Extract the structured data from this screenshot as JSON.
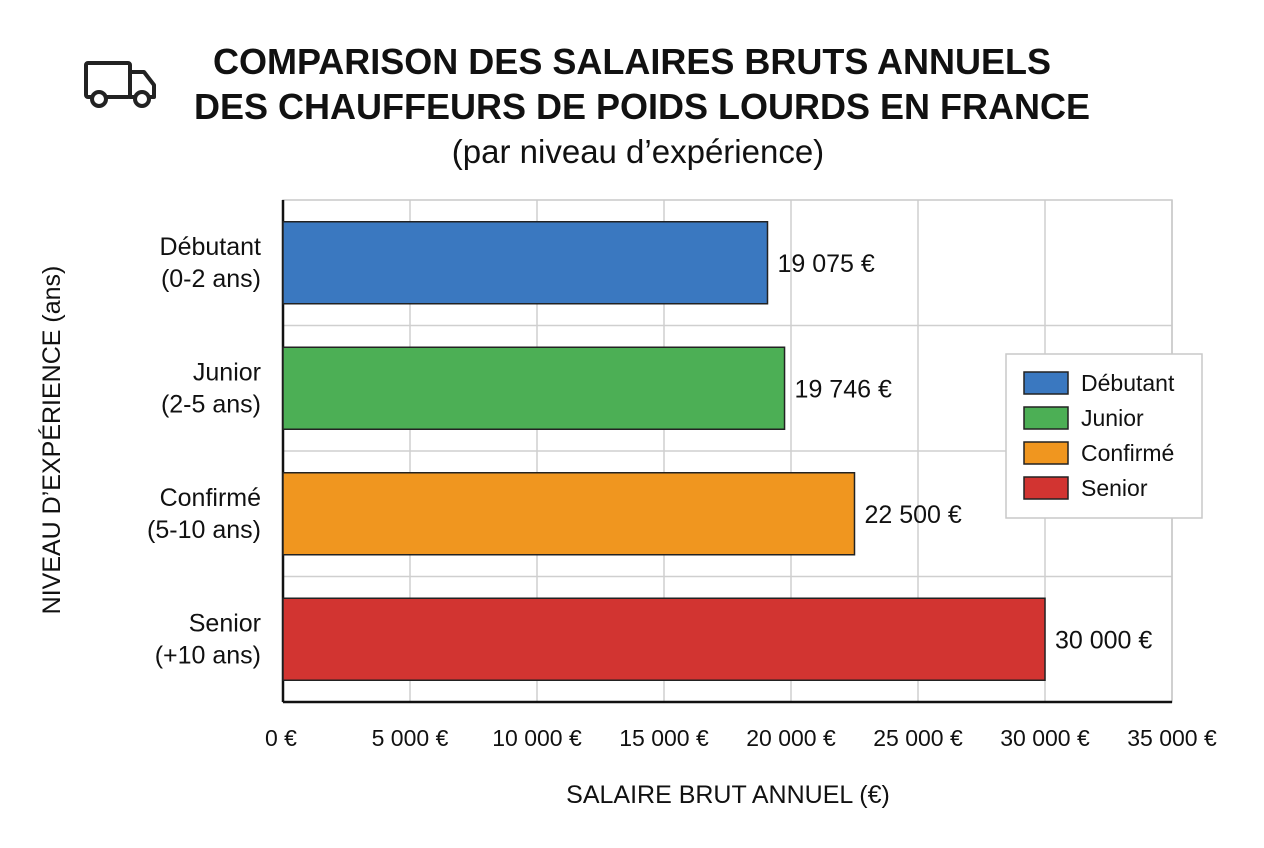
{
  "icon": "truck-icon",
  "chart_data": {
    "type": "bar",
    "orientation": "horizontal",
    "title": [
      "COMPARISON DES SALAIRES BRUTS ANNUELS",
      "DES CHAUFFEURS DE POIDS LOURDS EN FRANCE"
    ],
    "subtitle": "(par niveau d’expérience)",
    "xlabel": "SALAIRE BRUT ANNUEL (€)",
    "ylabel": "NIVEAU D’EXPÉRIENCE (ans)",
    "xlim": [
      0,
      35000
    ],
    "xticks": [
      0,
      5000,
      10000,
      15000,
      20000,
      25000,
      30000,
      35000
    ],
    "xtick_labels": [
      "0 €",
      "5 000 €",
      "10 000 €",
      "15 000 €",
      "20 000 €",
      "25 000 €",
      "30 000 €",
      "35 000 €"
    ],
    "grid": true,
    "legend_position": "right",
    "categories": [
      {
        "name": "Débutant",
        "range": "(0-2 ans)"
      },
      {
        "name": "Junior",
        "range": "(2-5 ans)"
      },
      {
        "name": "Confirmé",
        "range": "(5-10 ans)"
      },
      {
        "name": "Senior",
        "range": "(+10 ans)"
      }
    ],
    "values": [
      19075,
      19746,
      22500,
      30000
    ],
    "value_labels": [
      "19 075 €",
      "19 746 €",
      "22 500 €",
      "30 000 €"
    ],
    "colors": [
      "#3a78c0",
      "#4caf55",
      "#f0961f",
      "#d23431"
    ],
    "legend": [
      "Débutant",
      "Junior",
      "Confirmé",
      "Senior"
    ]
  }
}
